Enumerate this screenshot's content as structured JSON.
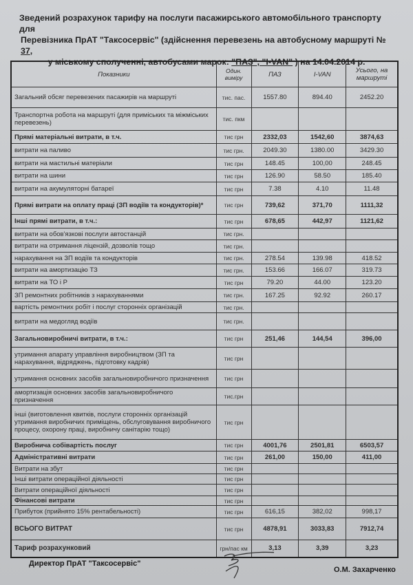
{
  "title": {
    "line1": "Зведений розрахунок тарифу на послуги пасажирського автомобільного транспорту для",
    "line2_a": "Перевізника ПрАТ \"Таксосервіс\" (здійснення перевезень на автобусному маршруті №",
    "route_number": "37",
    "line3_a": "у міському  сполученні, автобусами марок:",
    "brands": "\"ПАЗ\", \"I-VAN\"",
    "line3_b": ") на 14.04.2014 р."
  },
  "table": {
    "headers": [
      "Показники",
      "Один. виміру",
      "ПАЗ",
      "I-VAN",
      "Усього, на маршруті"
    ],
    "rows": [
      {
        "label": "Загальний обсяг перевезених пасажирів на маршруті",
        "unit": "тис. пас.",
        "paz": "1557.80",
        "ivan": "894.40",
        "total": "2452.20",
        "bold": false
      },
      {
        "label": "Транспортна робота на маршруті (для приміських та міжміських перевезень)",
        "unit": "тис. пкм",
        "paz": "",
        "ivan": "",
        "total": "",
        "bold": false
      },
      {
        "label": "Прямі матеріальні витрати, в т.ч.",
        "unit": "тис грн",
        "paz": "2332,03",
        "ivan": "1542,60",
        "total": "3874,63",
        "bold": true
      },
      {
        "label": "витрати на паливо",
        "unit": "тис грн.",
        "paz": "2049.30",
        "ivan": "1380.00",
        "total": "3429.30",
        "bold": false
      },
      {
        "label": "витрати на мастильні матеріали",
        "unit": "тис грн",
        "paz": "148.45",
        "ivan": "100,00",
        "total": "248.45",
        "bold": false
      },
      {
        "label": "витрати на шини",
        "unit": "тис грн",
        "paz": "126.90",
        "ivan": "58.50",
        "total": "185.40",
        "bold": false
      },
      {
        "label": "витрати на акумуляторні батареї",
        "unit": "тис грн",
        "paz": "7.38",
        "ivan": "4.10",
        "total": "11.48",
        "bold": false
      },
      {
        "label": "Прямі витрати на оплату праці (ЗП водіїв та кондукторів)*",
        "unit": "тис грн",
        "paz": "739,62",
        "ivan": "371,70",
        "total": "1111,32",
        "bold": true
      },
      {
        "label": "Інші прямі витрати, в т.ч.:",
        "unit": "тис грн",
        "paz": "678,65",
        "ivan": "442,97",
        "total": "1121,62",
        "bold": true
      },
      {
        "label": "витрати на обов'язкові послуги автостанцій",
        "unit": "тис грн.",
        "paz": "",
        "ivan": "",
        "total": "",
        "bold": false
      },
      {
        "label": "витрати на отримання ліцензій, дозволів тощо",
        "unit": "тис грн.",
        "paz": "",
        "ivan": "",
        "total": "",
        "bold": false
      },
      {
        "label": "нарахування на ЗП водіїв та кондукторів",
        "unit": "тис грн.",
        "paz": "278.54",
        "ivan": "139.98",
        "total": "418.52",
        "bold": false
      },
      {
        "label": "витрати на амортизацію ТЗ",
        "unit": "тис грн.",
        "paz": "153.66",
        "ivan": "166.07",
        "total": "319.73",
        "bold": false
      },
      {
        "label": "витрати на ТО і Р",
        "unit": "тис грн",
        "paz": "79.20",
        "ivan": "44.00",
        "total": "123.20",
        "bold": false
      },
      {
        "label": "ЗП ремонтних робітників з нарахуваннями",
        "unit": "тис грн.",
        "paz": "167.25",
        "ivan": "92.92",
        "total": "260.17",
        "bold": false
      },
      {
        "label": "вартість ремонтних робіт і послуг сторонніх організацій",
        "unit": "тис грн.",
        "paz": "",
        "ivan": "",
        "total": "",
        "bold": false
      },
      {
        "label": "витрати на медогляд водіїв",
        "unit": "тис грн.",
        "paz": "",
        "ivan": "",
        "total": "",
        "bold": false
      },
      {
        "label": "Загальновиробничі витрати, в т.ч.:",
        "unit": "тис грн",
        "paz": "251,46",
        "ivan": "144,54",
        "total": "396,00",
        "bold": true
      },
      {
        "label": "утримання апарату управління виробництвом (ЗП та нарахування, відряджень, підготовку кадрів)",
        "unit": "тис грн",
        "paz": "",
        "ivan": "",
        "total": "",
        "bold": false
      },
      {
        "label": "утримання основних засобів загальновиробничого призначення",
        "unit": "тис грн",
        "paz": "",
        "ivan": "",
        "total": "",
        "bold": false
      },
      {
        "label": "амортизація основних засобів загальновиробничого призначення",
        "unit": "тис.грн",
        "paz": "",
        "ivan": "",
        "total": "",
        "bold": false
      },
      {
        "label": "інші (виготовлення квитків, послуги сторонніх організацій утримання виробничих приміщень, обслуговування виробничого процесу, охорону праці, виробничу санітарію тощо)",
        "unit": "тис грн",
        "paz": "",
        "ivan": "",
        "total": "",
        "bold": false
      },
      {
        "label": "Виробнича собівартість послуг",
        "unit": "тис грн",
        "paz": "4001,76",
        "ivan": "2501,81",
        "total": "6503,57",
        "bold": true
      },
      {
        "label": "Адміністративні витрати",
        "unit": "тис грн",
        "paz": "261,00",
        "ivan": "150,00",
        "total": "411,00",
        "bold": true
      },
      {
        "label": "Витрати на збут",
        "unit": "тис грн",
        "paz": "",
        "ivan": "",
        "total": "",
        "bold": false
      },
      {
        "label": "Інші витрати операційної діяльності",
        "unit": "тис грн",
        "paz": "",
        "ivan": "",
        "total": "",
        "bold": false
      },
      {
        "label": "Витрати операційної діяльності",
        "unit": "тис грн",
        "paz": "",
        "ivan": "",
        "total": "",
        "bold": false
      },
      {
        "label": "Фінансові витрати",
        "unit": "тис грн",
        "paz": "",
        "ivan": "",
        "total": "",
        "bold": true
      },
      {
        "label": "Прибуток (прийнято 15% рентабельності)",
        "unit": "тис грн",
        "paz": "616,15",
        "ivan": "382,02",
        "total": "998,17",
        "bold": false
      },
      {
        "label": "ВСЬОГО ВИТРАТ",
        "unit": "тис грн",
        "paz": "4878,91",
        "ivan": "3033,83",
        "total": "7912,74",
        "bold": true
      },
      {
        "label": "Тариф розрахунковий",
        "unit": "грн/пас км",
        "paz": "3,13",
        "ivan": "3,39",
        "total": "3,23",
        "bold": true
      }
    ]
  },
  "footer": {
    "director": "Директор ПрАТ \"Таксосервіс\"",
    "name": "О.М. Захарченко"
  }
}
